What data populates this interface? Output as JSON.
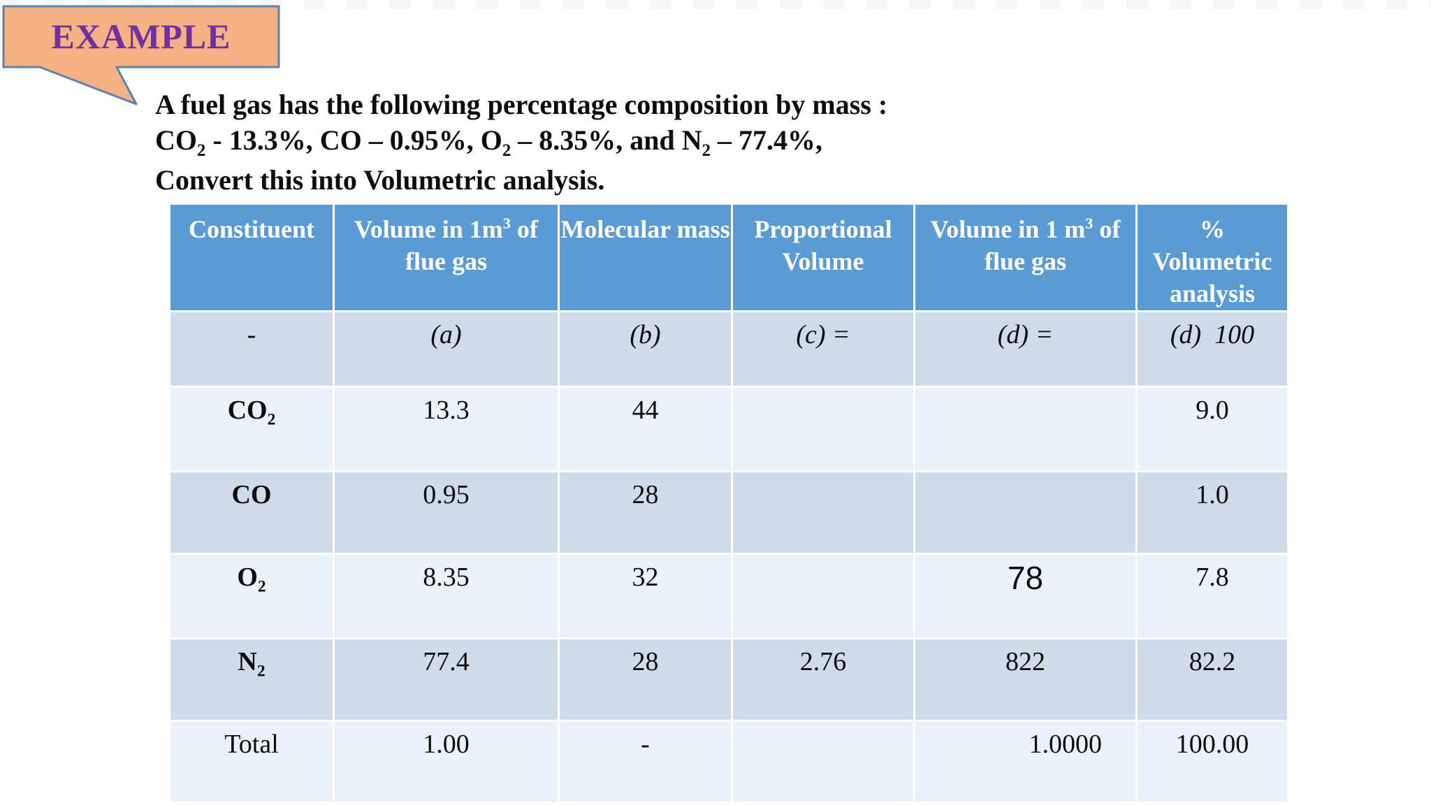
{
  "colors": {
    "header_blue": "#5B9BD5",
    "band_dark": "#CEDCE9",
    "band_light": "#EAF1F8",
    "callout_fill": "#F4B183",
    "callout_border": "#5B82B0",
    "example_text": "#7030A0"
  },
  "callout": {
    "label": "EXAMPLE"
  },
  "problem": {
    "line1": "A fuel gas has the following percentage composition by mass :",
    "line2_segments": [
      {
        "t": "CO"
      },
      {
        "sub": "2"
      },
      {
        "t": " - 13.3%, CO – 0.95%, O"
      },
      {
        "sub": "2"
      },
      {
        "t": " – 8.35%, and N"
      },
      {
        "sub": "2"
      },
      {
        "t": " – 77.4%,"
      }
    ],
    "line3": "Convert this into Volumetric analysis."
  },
  "table": {
    "headers": [
      "Constituent",
      [
        {
          "t": "Volume in 1m"
        },
        {
          "sup": "3"
        },
        {
          "t": " of flue gas"
        }
      ],
      "Molecular mass",
      "Proportional Volume",
      [
        {
          "t": "Volume in 1 m"
        },
        {
          "sup": "3"
        },
        {
          "t": " of flue gas"
        }
      ],
      [
        {
          "t": "%"
        },
        {
          "br": true
        },
        {
          "t": "Volumetric analysis"
        }
      ]
    ],
    "rows": [
      {
        "cells": [
          "-",
          "(a)",
          "(b)",
          "(c) =",
          "(d) =",
          "(d)  100"
        ]
      },
      {
        "cells": [
          [
            {
              "t": "CO"
            },
            {
              "sub": "2"
            }
          ],
          "13.3",
          "44",
          "",
          "",
          "9.0"
        ]
      },
      {
        "cells": [
          "CO",
          "0.95",
          "28",
          "",
          "",
          "1.0"
        ]
      },
      {
        "cells": [
          [
            {
              "t": "O"
            },
            {
              "sub": "2"
            }
          ],
          "8.35",
          "32",
          "",
          "78",
          "7.8"
        ]
      },
      {
        "cells": [
          [
            {
              "t": "N"
            },
            {
              "sub": "2"
            }
          ],
          "77.4",
          "28",
          "2.76",
          "822",
          "82.2"
        ]
      },
      {
        "cells": [
          "Total",
          "1.00",
          "-",
          "",
          "1.0000",
          "100.00"
        ]
      }
    ]
  }
}
